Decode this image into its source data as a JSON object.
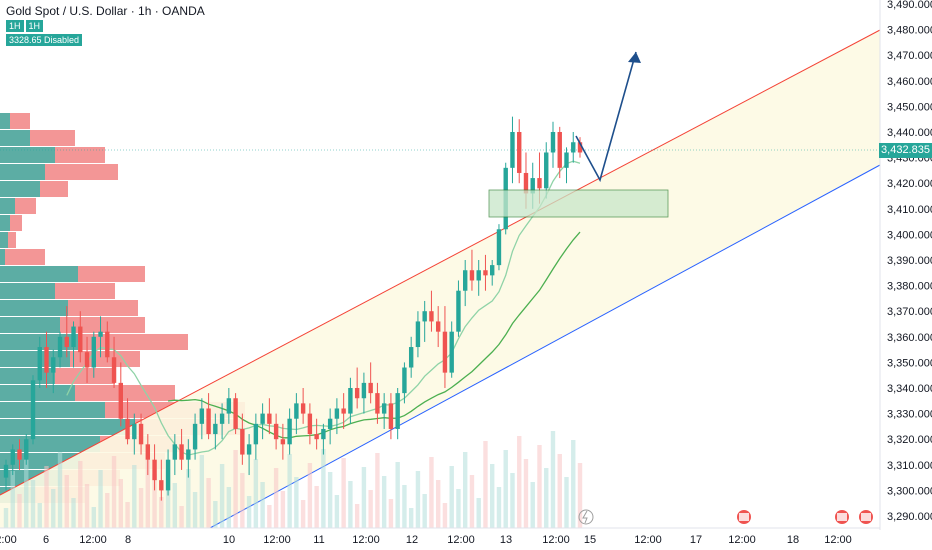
{
  "header": {
    "symbol_line": "Gold Spot / U.S. Dollar · 1h · OANDA",
    "val_a": "1H",
    "val_b": "1H",
    "disabled_text": "3328.65 Disabled"
  },
  "current_price": "3,432.835",
  "chart_data": {
    "type": "candlestick",
    "y_ticks": [
      3490,
      3480,
      3470,
      3460,
      3450,
      3440,
      3430,
      3420,
      3410,
      3400,
      3390,
      3380,
      3370,
      3360,
      3350,
      3340,
      3330,
      3320,
      3310,
      3300,
      3290
    ],
    "y_tick_labels": [
      "3,490.000",
      "3,480.000",
      "3,470.000",
      "3,460.000",
      "3,450.000",
      "3,440.000",
      "3,430.000",
      "3,420.000",
      "3,410.000",
      "3,400.000",
      "3,390.000",
      "3,380.000",
      "3,370.000",
      "3,360.000",
      "3,350.000",
      "3,340.000",
      "3,330.000",
      "3,320.000",
      "3,310.000",
      "3,300.000",
      "3,290.000"
    ],
    "x_tick_labels": [
      "2:00",
      "6",
      "12:00",
      "8",
      "10",
      "12:00",
      "11",
      "12:00",
      "12",
      "12:00",
      "13",
      "12:00",
      "15",
      "12:00",
      "17",
      "12:00",
      "18",
      "12:00"
    ],
    "ylim": [
      3286,
      3492
    ],
    "colors": {
      "up": "#26a69a",
      "down": "#ef5350",
      "sma_fast": "#8fd3a7",
      "sma_slow": "#4caf50",
      "channel_top": "#f44336",
      "channel_bottom": "#2962ff",
      "arrow": "#1e4f8c"
    },
    "candles": [
      [
        3305,
        3312,
        3300,
        3310
      ],
      [
        3310,
        3318,
        3306,
        3316
      ],
      [
        3316,
        3320,
        3308,
        3312
      ],
      [
        3312,
        3322,
        3310,
        3320
      ],
      [
        3320,
        3345,
        3318,
        3343
      ],
      [
        3343,
        3360,
        3340,
        3356
      ],
      [
        3356,
        3362,
        3340,
        3346
      ],
      [
        3346,
        3355,
        3338,
        3352
      ],
      [
        3352,
        3362,
        3348,
        3360
      ],
      [
        3360,
        3372,
        3352,
        3356
      ],
      [
        3356,
        3366,
        3348,
        3364
      ],
      [
        3364,
        3370,
        3350,
        3354
      ],
      [
        3354,
        3360,
        3342,
        3348
      ],
      [
        3348,
        3362,
        3344,
        3360
      ],
      [
        3360,
        3368,
        3352,
        3362
      ],
      [
        3362,
        3366,
        3350,
        3352
      ],
      [
        3352,
        3360,
        3340,
        3342
      ],
      [
        3342,
        3350,
        3325,
        3328
      ],
      [
        3328,
        3336,
        3318,
        3320
      ],
      [
        3320,
        3330,
        3314,
        3326
      ],
      [
        3326,
        3330,
        3314,
        3318
      ],
      [
        3318,
        3322,
        3306,
        3312
      ],
      [
        3312,
        3318,
        3300,
        3304
      ],
      [
        3304,
        3312,
        3296,
        3300
      ],
      [
        3300,
        3316,
        3298,
        3312
      ],
      [
        3312,
        3322,
        3306,
        3318
      ],
      [
        3318,
        3324,
        3308,
        3312
      ],
      [
        3312,
        3320,
        3305,
        3316
      ],
      [
        3316,
        3330,
        3312,
        3326
      ],
      [
        3326,
        3336,
        3320,
        3332
      ],
      [
        3332,
        3338,
        3320,
        3322
      ],
      [
        3322,
        3330,
        3316,
        3326
      ],
      [
        3326,
        3334,
        3320,
        3330
      ],
      [
        3330,
        3340,
        3326,
        3336
      ],
      [
        3336,
        3338,
        3322,
        3324
      ],
      [
        3324,
        3330,
        3310,
        3314
      ],
      [
        3314,
        3322,
        3306,
        3318
      ],
      [
        3318,
        3330,
        3312,
        3326
      ],
      [
        3326,
        3334,
        3320,
        3330
      ],
      [
        3330,
        3336,
        3322,
        3326
      ],
      [
        3326,
        3330,
        3316,
        3320
      ],
      [
        3320,
        3326,
        3312,
        3318
      ],
      [
        3318,
        3332,
        3314,
        3328
      ],
      [
        3328,
        3338,
        3322,
        3334
      ],
      [
        3334,
        3340,
        3326,
        3330
      ],
      [
        3330,
        3334,
        3318,
        3322
      ],
      [
        3322,
        3328,
        3316,
        3320
      ],
      [
        3320,
        3326,
        3314,
        3324
      ],
      [
        3324,
        3332,
        3318,
        3328
      ],
      [
        3328,
        3336,
        3322,
        3332
      ],
      [
        3332,
        3338,
        3324,
        3330
      ],
      [
        3330,
        3344,
        3326,
        3340
      ],
      [
        3340,
        3348,
        3332,
        3336
      ],
      [
        3336,
        3346,
        3330,
        3342
      ],
      [
        3342,
        3350,
        3334,
        3338
      ],
      [
        3338,
        3342,
        3326,
        3330
      ],
      [
        3330,
        3338,
        3324,
        3334
      ],
      [
        3334,
        3338,
        3320,
        3324
      ],
      [
        3324,
        3340,
        3320,
        3338
      ],
      [
        3338,
        3350,
        3334,
        3348
      ],
      [
        3348,
        3360,
        3344,
        3356
      ],
      [
        3356,
        3370,
        3352,
        3366
      ],
      [
        3366,
        3374,
        3358,
        3370
      ],
      [
        3370,
        3378,
        3362,
        3366
      ],
      [
        3366,
        3372,
        3356,
        3362
      ],
      [
        3362,
        3372,
        3340,
        3346
      ],
      [
        3346,
        3366,
        3344,
        3362
      ],
      [
        3362,
        3382,
        3360,
        3378
      ],
      [
        3378,
        3390,
        3372,
        3386
      ],
      [
        3386,
        3394,
        3378,
        3382
      ],
      [
        3382,
        3390,
        3376,
        3386
      ],
      [
        3386,
        3392,
        3378,
        3384
      ],
      [
        3384,
        3390,
        3380,
        3388
      ],
      [
        3388,
        3404,
        3386,
        3402
      ],
      [
        3402,
        3428,
        3400,
        3426
      ],
      [
        3426,
        3446,
        3420,
        3440
      ],
      [
        3440,
        3445,
        3420,
        3424
      ],
      [
        3424,
        3432,
        3410,
        3416
      ],
      [
        3416,
        3428,
        3410,
        3422
      ],
      [
        3422,
        3432,
        3412,
        3418
      ],
      [
        3418,
        3436,
        3414,
        3432
      ],
      [
        3432,
        3444,
        3426,
        3440
      ],
      [
        3440,
        3442,
        3422,
        3426
      ],
      [
        3426,
        3434,
        3420,
        3432
      ],
      [
        3432,
        3440,
        3428,
        3436
      ],
      [
        3436,
        3438,
        3430,
        3432
      ]
    ]
  }
}
